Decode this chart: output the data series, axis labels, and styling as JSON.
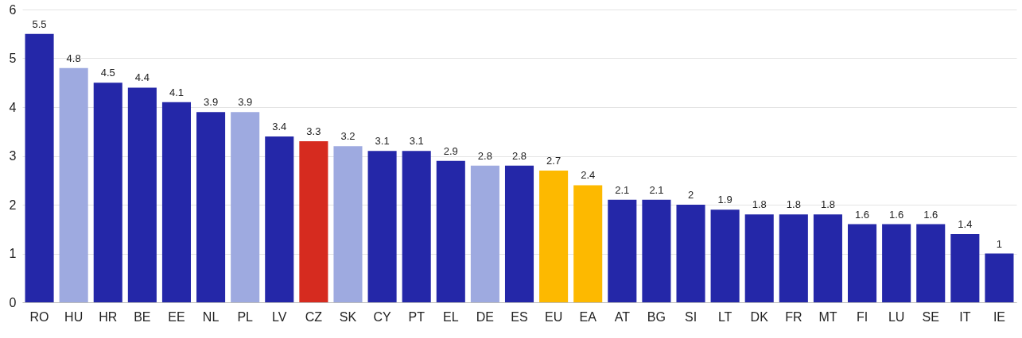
{
  "chart_data": {
    "type": "bar",
    "categories": [
      "RO",
      "HU",
      "HR",
      "BE",
      "EE",
      "NL",
      "PL",
      "LV",
      "CZ",
      "SK",
      "CY",
      "PT",
      "EL",
      "DE",
      "ES",
      "EU",
      "EA",
      "AT",
      "BG",
      "SI",
      "LT",
      "DK",
      "FR",
      "MT",
      "FI",
      "LU",
      "SE",
      "IT",
      "IE"
    ],
    "values": [
      5.5,
      4.8,
      4.5,
      4.4,
      4.1,
      3.9,
      3.9,
      3.4,
      3.3,
      3.2,
      3.1,
      3.1,
      2.9,
      2.8,
      2.8,
      2.7,
      2.4,
      2.1,
      2.1,
      2,
      1.9,
      1.8,
      1.8,
      1.8,
      1.6,
      1.6,
      1.6,
      1.4,
      1
    ],
    "colors": [
      "#2427a8",
      "#9eaae0",
      "#2427a8",
      "#2427a8",
      "#2427a8",
      "#2427a8",
      "#9eaae0",
      "#2427a8",
      "#d62b1f",
      "#9eaae0",
      "#2427a8",
      "#2427a8",
      "#2427a8",
      "#9eaae0",
      "#2427a8",
      "#fdb900",
      "#fdb900",
      "#2427a8",
      "#2427a8",
      "#2427a8",
      "#2427a8",
      "#2427a8",
      "#2427a8",
      "#2427a8",
      "#2427a8",
      "#2427a8",
      "#2427a8",
      "#2427a8",
      "#2427a8"
    ],
    "ylim": [
      0,
      6
    ],
    "yticks": [
      0,
      1,
      2,
      3,
      4,
      5,
      6
    ],
    "grid": "y",
    "data_labels": true
  }
}
